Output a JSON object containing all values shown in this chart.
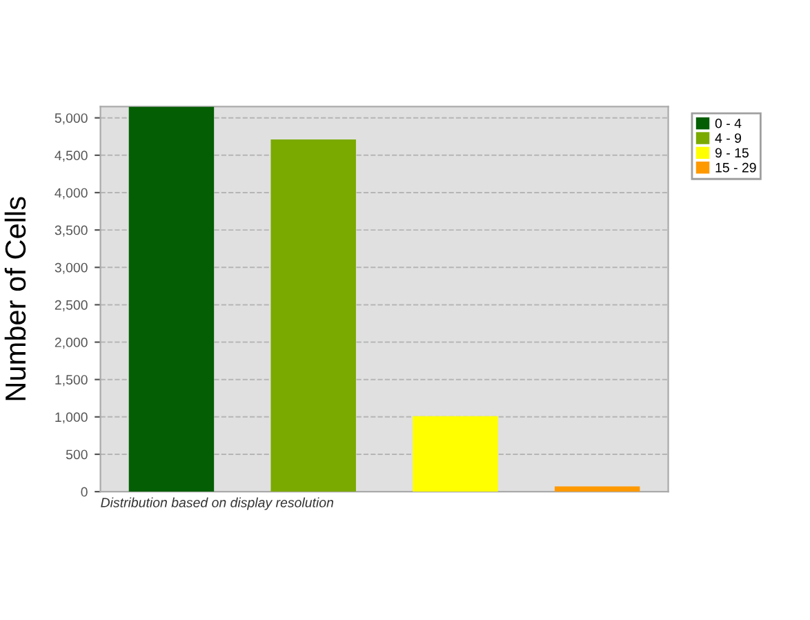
{
  "chart_data": {
    "type": "bar",
    "ylabel": "Number of Cells",
    "annotations": [
      "Distribution based on display resolution"
    ],
    "categories": [
      null,
      null,
      null,
      null
    ],
    "series": [
      {
        "name": "0 - 4",
        "color": "#045e03",
        "values": [
          5150,
          null,
          null,
          null
        ]
      },
      {
        "name": "4 - 9",
        "color": "#7aaa00",
        "values": [
          null,
          4710,
          null,
          null
        ]
      },
      {
        "name": "9 - 15",
        "color": "#ffff00",
        "values": [
          null,
          null,
          1010,
          null
        ]
      },
      {
        "name": "15 - 29",
        "color": "#ff9900",
        "values": [
          null,
          null,
          null,
          70
        ]
      }
    ],
    "ylim": [
      0,
      5150
    ],
    "yticks": [
      {
        "value": 0,
        "label": "0"
      },
      {
        "value": 500,
        "label": "500"
      },
      {
        "value": 1000,
        "label": "1,000"
      },
      {
        "value": 1500,
        "label": "1,500"
      },
      {
        "value": 2000,
        "label": "2,000"
      },
      {
        "value": 2500,
        "label": "2,500"
      },
      {
        "value": 3000,
        "label": "3,000"
      },
      {
        "value": 3500,
        "label": "3,500"
      },
      {
        "value": 4000,
        "label": "4,000"
      },
      {
        "value": 4500,
        "label": "4,500"
      },
      {
        "value": 5000,
        "label": "5,000"
      }
    ],
    "grid": "y",
    "legend": "top right"
  }
}
